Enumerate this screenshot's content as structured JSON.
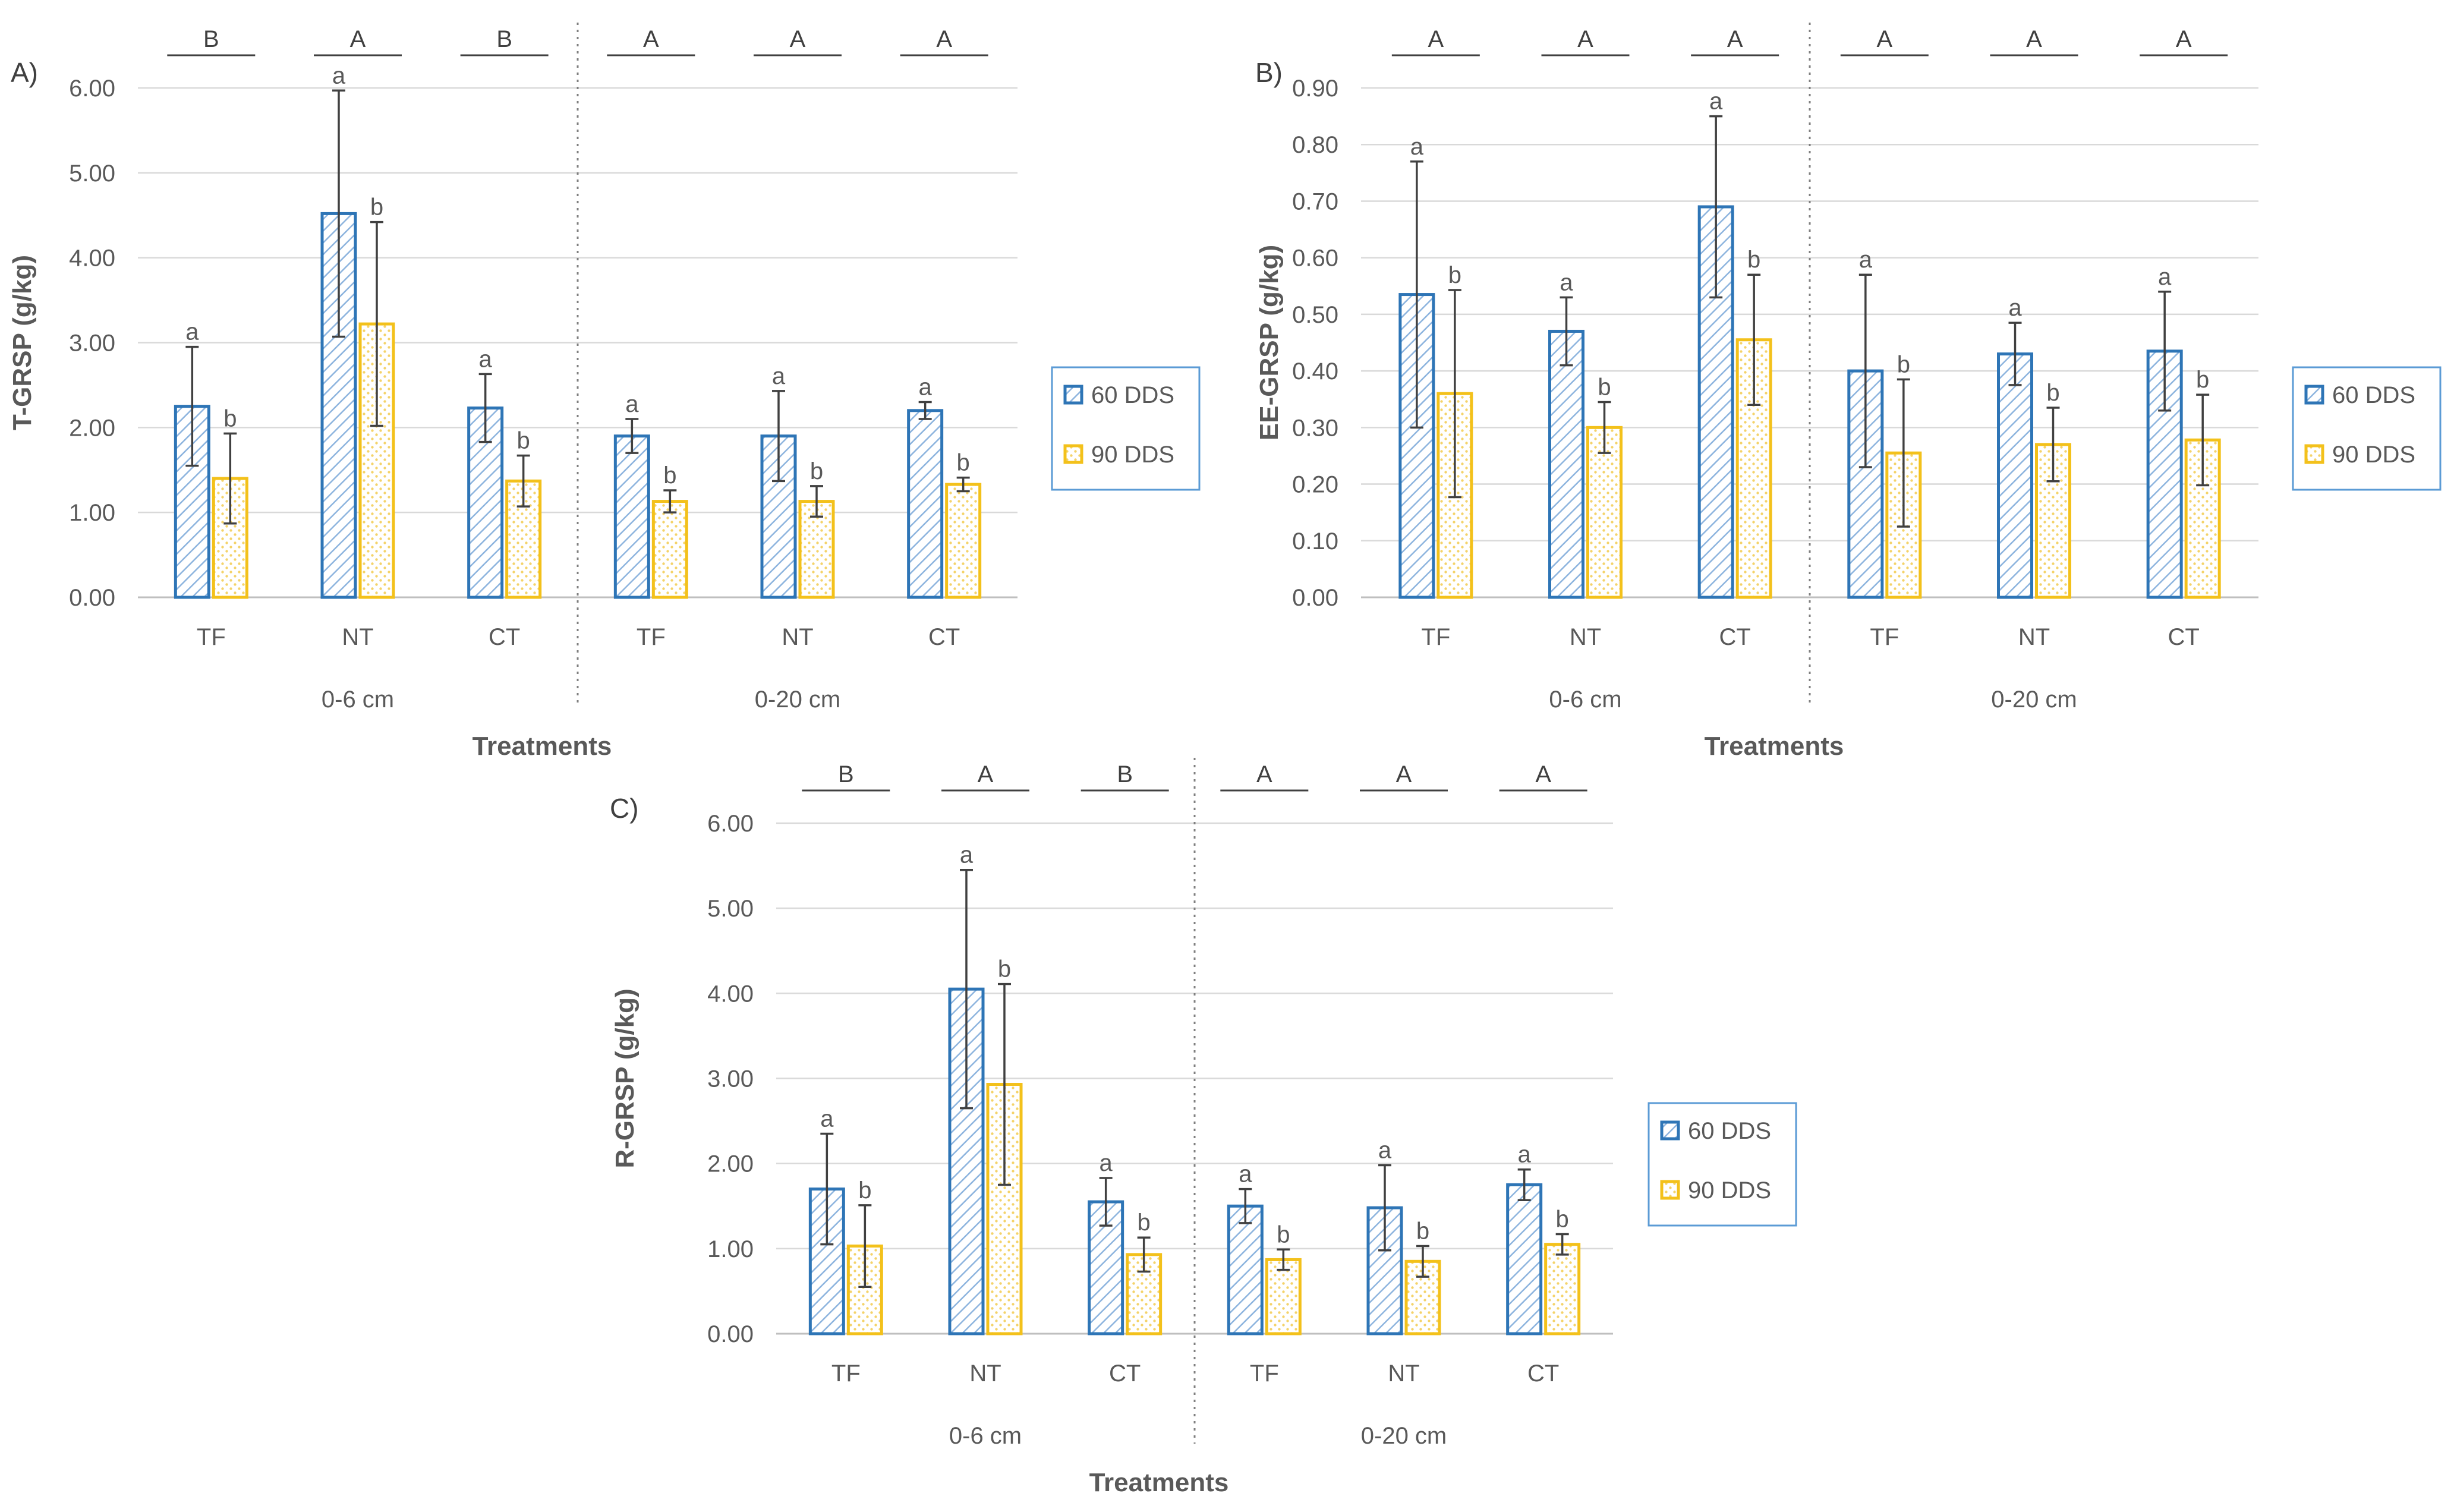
{
  "figure": "GRSP by treatment, depth and sampling date",
  "colors": {
    "blue": "#2E75B6",
    "blue_hatch": "#9DC3E6",
    "yellow": "#F3C11B",
    "yellow_dot": "#F6D46A",
    "grid": "#D9D9D9",
    "axis": "#BFBFBF",
    "text": "#595959",
    "error": "#404040"
  },
  "legend_icons": [
    "hatched-blue-swatch",
    "dotted-yellow-swatch"
  ],
  "chart_data": [
    {
      "id": "A",
      "type": "bar",
      "panel_label": "A)",
      "ylabel": "T-GRSP (g/kg)",
      "xlabel": "Treatments",
      "ylim": [
        0,
        6
      ],
      "ytick_step": 1,
      "ytick_labels": [
        "0.00",
        "1.00",
        "2.00",
        "3.00",
        "4.00",
        "5.00",
        "6.00"
      ],
      "groups": [
        "0-6 cm",
        "0-20 cm"
      ],
      "categories": [
        "TF",
        "NT",
        "CT",
        "TF",
        "NT",
        "CT"
      ],
      "series": [
        {
          "name": "60 DDS",
          "values": [
            2.25,
            4.52,
            2.23,
            1.9,
            1.9,
            2.2
          ],
          "errors": [
            0.7,
            1.45,
            0.4,
            0.2,
            0.53,
            0.1
          ],
          "letters": [
            "a",
            "a",
            "a",
            "a",
            "a",
            "a"
          ]
        },
        {
          "name": "90 DDS",
          "values": [
            1.4,
            3.22,
            1.37,
            1.13,
            1.13,
            1.33
          ],
          "errors": [
            0.53,
            1.2,
            0.3,
            0.13,
            0.18,
            0.08
          ],
          "letters": [
            "b",
            "b",
            "b",
            "b",
            "b",
            "b"
          ]
        }
      ],
      "upper_letters": [
        "B",
        "A",
        "B",
        "A",
        "A",
        "A"
      ],
      "legend": [
        "60 DDS",
        "90 DDS"
      ],
      "grid": true
    },
    {
      "id": "B",
      "type": "bar",
      "panel_label": "B)",
      "ylabel": "EE-GRSP (g/kg)",
      "xlabel": "Treatments",
      "ylim": [
        0,
        0.9
      ],
      "ytick_step": 0.1,
      "ytick_labels": [
        "0.00",
        "0.10",
        "0.20",
        "0.30",
        "0.40",
        "0.50",
        "0.60",
        "0.70",
        "0.80",
        "0.90"
      ],
      "groups": [
        "0-6 cm",
        "0-20 cm"
      ],
      "categories": [
        "TF",
        "NT",
        "CT",
        "TF",
        "NT",
        "CT"
      ],
      "series": [
        {
          "name": "60 DDS",
          "values": [
            0.535,
            0.47,
            0.69,
            0.4,
            0.43,
            0.435
          ],
          "errors": [
            0.235,
            0.06,
            0.16,
            0.17,
            0.055,
            0.105
          ],
          "letters": [
            "a",
            "a",
            "a",
            "a",
            "a",
            "a"
          ]
        },
        {
          "name": "90 DDS",
          "values": [
            0.36,
            0.3,
            0.455,
            0.255,
            0.27,
            0.278
          ],
          "errors": [
            0.183,
            0.045,
            0.115,
            0.13,
            0.065,
            0.08
          ],
          "letters": [
            "b",
            "b",
            "b",
            "b",
            "b",
            "b"
          ]
        }
      ],
      "upper_letters": [
        "A",
        "A",
        "A",
        "A",
        "A",
        "A"
      ],
      "legend": [
        "60 DDS",
        "90 DDS"
      ],
      "grid": true
    },
    {
      "id": "C",
      "type": "bar",
      "panel_label": "C)",
      "ylabel": "R-GRSP (g/kg)",
      "xlabel": "Treatments",
      "ylim": [
        0,
        6
      ],
      "ytick_step": 1,
      "ytick_labels": [
        "0.00",
        "1.00",
        "2.00",
        "3.00",
        "4.00",
        "5.00",
        "6.00"
      ],
      "groups": [
        "0-6 cm",
        "0-20 cm"
      ],
      "categories": [
        "TF",
        "NT",
        "CT",
        "TF",
        "NT",
        "CT"
      ],
      "series": [
        {
          "name": "60 DDS",
          "values": [
            1.7,
            4.05,
            1.55,
            1.5,
            1.48,
            1.75
          ],
          "errors": [
            0.65,
            1.4,
            0.28,
            0.2,
            0.5,
            0.18
          ],
          "letters": [
            "a",
            "a",
            "a",
            "a",
            "a",
            "a"
          ]
        },
        {
          "name": "90 DDS",
          "values": [
            1.03,
            2.93,
            0.93,
            0.87,
            0.85,
            1.05
          ],
          "errors": [
            0.48,
            1.18,
            0.2,
            0.12,
            0.18,
            0.12
          ],
          "letters": [
            "b",
            "b",
            "b",
            "b",
            "b",
            "b"
          ]
        }
      ],
      "upper_letters": [
        "B",
        "A",
        "B",
        "A",
        "A",
        "A"
      ],
      "legend": [
        "60 DDS",
        "90 DDS"
      ],
      "grid": true
    }
  ]
}
